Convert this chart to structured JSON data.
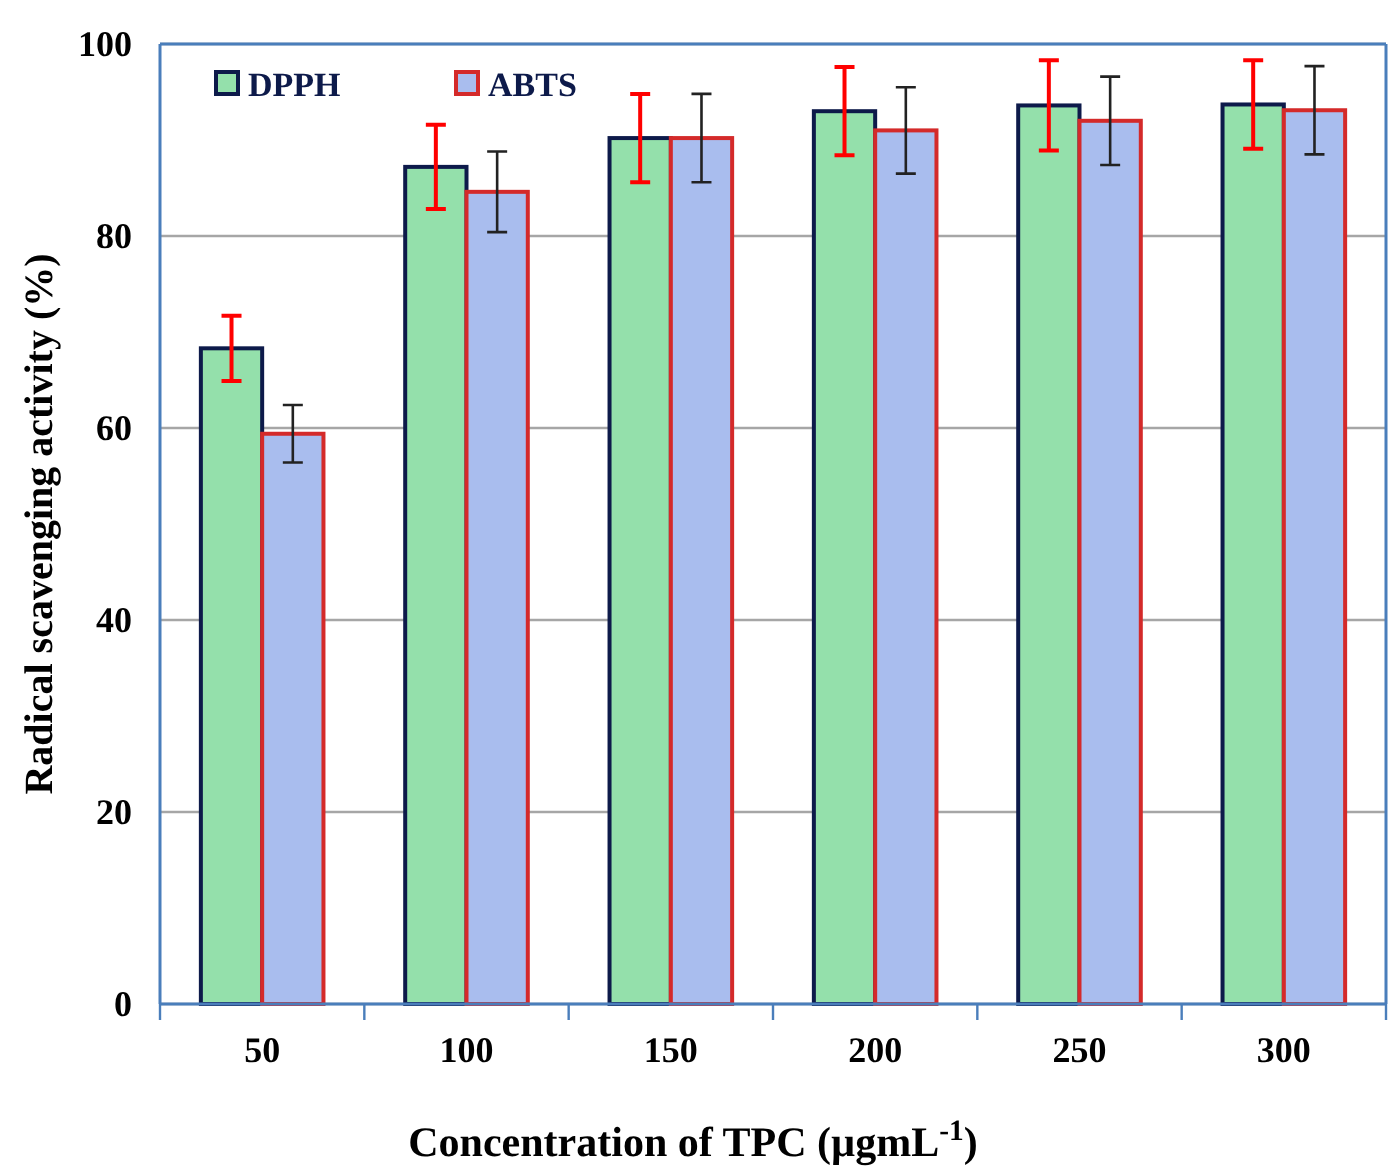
{
  "chart_data": {
    "type": "bar",
    "xlabel": "Concentration of TPC (µgmL$^{-1}$)",
    "ylabel": "Radical scavenging activity (%)",
    "categories": [
      "50",
      "100",
      "150",
      "200",
      "250",
      "300"
    ],
    "series": [
      {
        "name": "DPPH",
        "color": "#94e0ab",
        "values": [
          68.3,
          87.2,
          90.2,
          93.0,
          93.6,
          93.7
        ],
        "errors": [
          3.4,
          4.4,
          4.6,
          4.6,
          4.7,
          4.6
        ]
      },
      {
        "name": "ABTS",
        "color": "#a9bdee",
        "values": [
          59.4,
          84.6,
          90.2,
          91.0,
          92.0,
          93.1
        ],
        "errors": [
          3,
          4.2,
          4.6,
          4.5,
          4.6,
          4.6
        ]
      }
    ],
    "ylim": [
      0,
      100
    ],
    "yticks": [
      0,
      20,
      40,
      60,
      80,
      100
    ],
    "grid": "y",
    "legend": "top left"
  }
}
